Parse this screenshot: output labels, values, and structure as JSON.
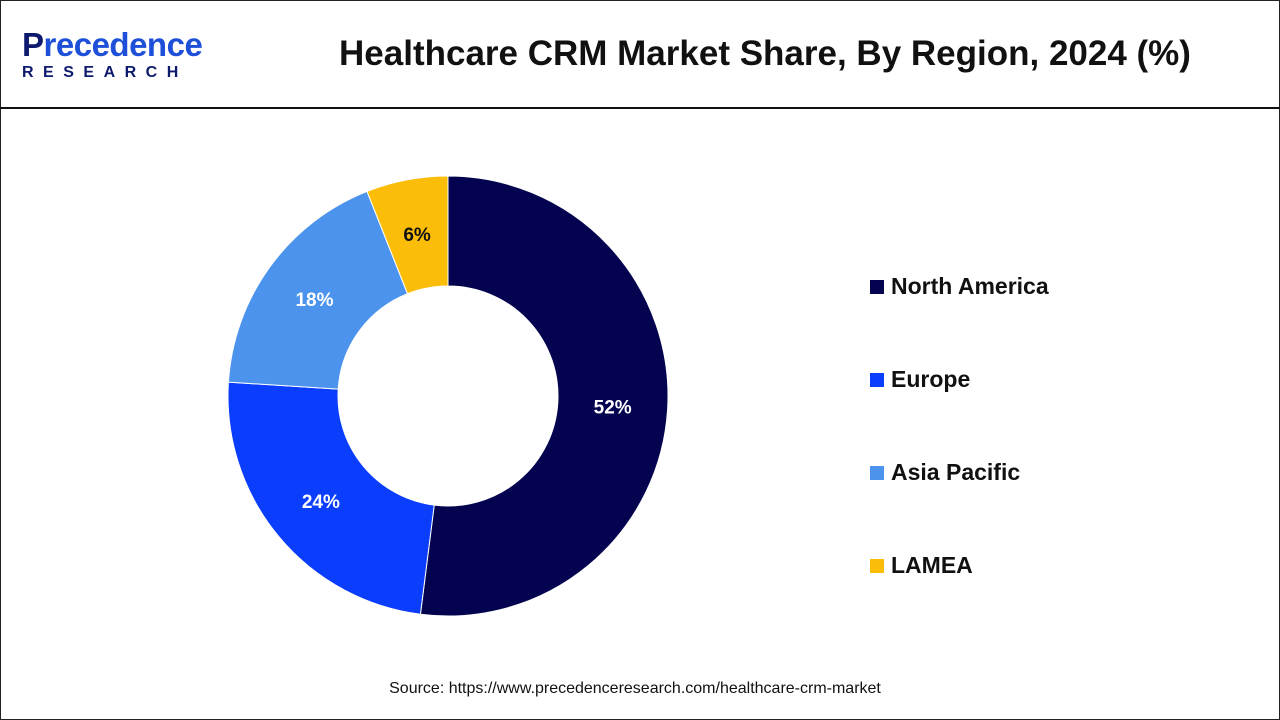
{
  "logo": {
    "main_first": "P",
    "main_rest": "recedence",
    "sub": "RESEARCH"
  },
  "source": "Source: https://www.precedenceresearch.com/healthcare-crm-market",
  "chart_data": {
    "type": "pie",
    "variant": "donut",
    "title": "Healthcare CRM Market Share, By Region, 2024 (%)",
    "categories": [
      "North America",
      "Europe",
      "Asia Pacific",
      "LAMEA"
    ],
    "values": [
      52,
      24,
      18,
      6
    ],
    "labels": [
      "52%",
      "24%",
      "18%",
      "6%"
    ],
    "colors": [
      "#03034f",
      "#0a3dfc",
      "#4b93ec",
      "#fbbd08"
    ],
    "label_colors": [
      "#ffffff",
      "#ffffff",
      "#ffffff",
      "#111111"
    ],
    "legend_position": "right"
  }
}
